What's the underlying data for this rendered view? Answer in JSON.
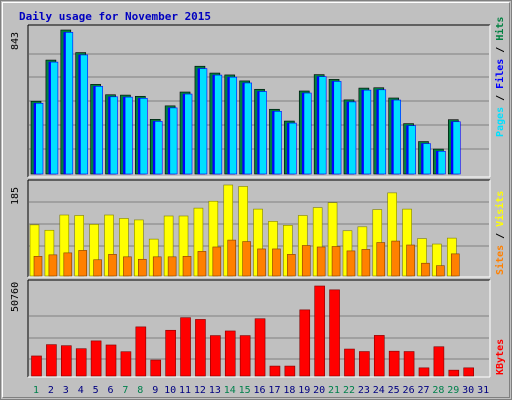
{
  "colors": {
    "background": "#c0c0c0",
    "title": "#0000c0",
    "hits": "#008040",
    "files": "#0000ff",
    "pages": "#00e0ff",
    "visits": "#ffff00",
    "sites": "#ff8000",
    "kbytes": "#ff0000",
    "weekend_day": "#00804c",
    "weekday": "#000080"
  },
  "chart_data": [
    {
      "type": "bar",
      "title": "Daily usage for November 2015",
      "categories": [
        "1",
        "2",
        "3",
        "4",
        "5",
        "6",
        "7",
        "8",
        "9",
        "10",
        "11",
        "12",
        "13",
        "14",
        "15",
        "16",
        "17",
        "18",
        "19",
        "20",
        "21",
        "22",
        "23",
        "24",
        "25",
        "26",
        "27",
        "28",
        "29",
        "30",
        "31"
      ],
      "weekend_days": [
        "1",
        "7",
        "8",
        "14",
        "15",
        "21",
        "22",
        "28",
        "29"
      ],
      "ylabel_parts": [
        "Pages",
        "Files",
        "Hits"
      ],
      "y_max_label": "843",
      "ylim": [
        0,
        843
      ],
      "series": [
        {
          "name": "Hits",
          "values": [
            426,
            667,
            843,
            711,
            525,
            464,
            462,
            455,
            320,
            399,
            480,
            631,
            591,
            580,
            545,
            496,
            379,
            310,
            486,
            582,
            554,
            434,
            503,
            505,
            445,
            295,
            190,
            146,
            318,
            null,
            null
          ]
        },
        {
          "name": "Files",
          "values": [
            414,
            655,
            829,
            697,
            513,
            452,
            450,
            443,
            308,
            387,
            468,
            617,
            579,
            567,
            533,
            483,
            367,
            298,
            474,
            570,
            542,
            422,
            491,
            493,
            433,
            283,
            178,
            133,
            306,
            null,
            null
          ]
        },
        {
          "name": "Pages",
          "values": [
            414,
            655,
            829,
            697,
            513,
            452,
            450,
            443,
            308,
            387,
            468,
            617,
            579,
            567,
            533,
            483,
            367,
            298,
            474,
            570,
            542,
            422,
            491,
            493,
            433,
            283,
            178,
            133,
            306,
            null,
            null
          ]
        }
      ]
    },
    {
      "type": "bar",
      "categories": [
        "1",
        "2",
        "3",
        "4",
        "5",
        "6",
        "7",
        "8",
        "9",
        "10",
        "11",
        "12",
        "13",
        "14",
        "15",
        "16",
        "17",
        "18",
        "19",
        "20",
        "21",
        "22",
        "23",
        "24",
        "25",
        "26",
        "27",
        "28",
        "29",
        "30",
        "31"
      ],
      "ylabel_parts": [
        "Sites",
        "Visits"
      ],
      "y_max_label": "185",
      "ylim": [
        0,
        185
      ],
      "series": [
        {
          "name": "Visits",
          "values": [
            104,
            93,
            124,
            123,
            105,
            124,
            117,
            114,
            75,
            122,
            122,
            138,
            152,
            185,
            182,
            136,
            111,
            103,
            123,
            139,
            149,
            92,
            100,
            135,
            169,
            136,
            76,
            65,
            77,
            null,
            null
          ]
        },
        {
          "name": "Sites",
          "values": [
            40,
            43,
            47,
            52,
            33,
            44,
            39,
            34,
            39,
            39,
            40,
            50,
            59,
            73,
            70,
            55,
            55,
            44,
            62,
            59,
            60,
            51,
            54,
            68,
            71,
            63,
            26,
            21,
            45,
            null,
            null
          ]
        }
      ]
    },
    {
      "type": "bar",
      "categories": [
        "1",
        "2",
        "3",
        "4",
        "5",
        "6",
        "7",
        "8",
        "9",
        "10",
        "11",
        "12",
        "13",
        "14",
        "15",
        "16",
        "17",
        "18",
        "19",
        "20",
        "21",
        "22",
        "23",
        "24",
        "25",
        "26",
        "27",
        "28",
        "29",
        "30",
        "31"
      ],
      "ylabel": "KBytes",
      "y_max_label": "50760",
      "ylim": [
        0,
        50760
      ],
      "series": [
        {
          "name": "KBytes",
          "values": [
            11300,
            17700,
            17100,
            15400,
            19800,
            17500,
            13700,
            27700,
            9000,
            25800,
            32900,
            31900,
            22800,
            25400,
            22800,
            32300,
            5600,
            5600,
            37300,
            50760,
            48600,
            15200,
            13800,
            22900,
            14000,
            13800,
            4600,
            16500,
            3300,
            4600,
            null
          ]
        }
      ]
    }
  ]
}
